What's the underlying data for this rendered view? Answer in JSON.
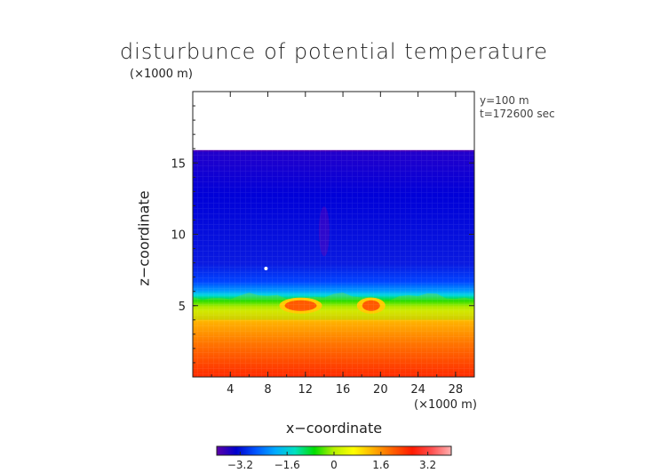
{
  "chart_data": {
    "type": "heatmap",
    "title": "disturbunce of potential temperature",
    "y_unit_note": "(×1000 m)",
    "x_unit_note": "(×1000 m)",
    "xlabel": "x−coordinate",
    "ylabel": "z−coordinate",
    "annotations": [
      "y=100 m",
      "t=172600 sec"
    ],
    "xlim": [
      0,
      30
    ],
    "ylim": [
      0,
      20
    ],
    "x_ticks": [
      4,
      8,
      12,
      16,
      20,
      24,
      28
    ],
    "x_tick_labels": [
      "4",
      "8",
      "12",
      "16",
      "20",
      "24",
      "28"
    ],
    "y_ticks": [
      5,
      10,
      15
    ],
    "y_tick_labels": [
      "5",
      "10",
      "15"
    ],
    "colorbar": {
      "range": [
        -4,
        4
      ],
      "ticks": [
        -3.2,
        -1.6,
        0,
        1.6,
        3.2
      ],
      "tick_labels": [
        "−3.2",
        "−1.6",
        "0",
        "1.6",
        "3.2"
      ],
      "colors": [
        "#5b00a8",
        "#0000cc",
        "#0055ff",
        "#00aaff",
        "#00e0c0",
        "#00dd00",
        "#b8f000",
        "#ffff00",
        "#ffb000",
        "#ff6000",
        "#ff1a00",
        "#ff5050",
        "#ffb0b0"
      ]
    },
    "field_summary": {
      "data_top_km": 15.9,
      "surface_value": 3.8,
      "transition_z_km": [
        4,
        6
      ],
      "upper_value": -2.8,
      "warm_bubbles": [
        {
          "x_km": 11.5,
          "z_km": 5,
          "value": 0.8
        },
        {
          "x_km": 19,
          "z_km": 5,
          "value": 0.8
        }
      ]
    }
  }
}
